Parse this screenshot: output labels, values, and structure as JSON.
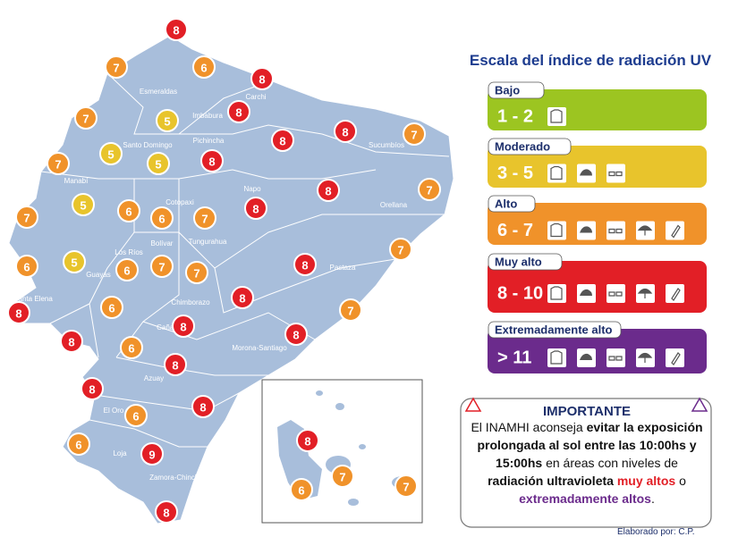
{
  "map": {
    "provinces": [
      "Esmeraldas",
      "Carchi",
      "Imbabura",
      "Sucumbíos",
      "Santo Domingo",
      "Pichincha",
      "Manabí",
      "Napo",
      "Orellana",
      "Cotopaxi",
      "Los Ríos",
      "Bolívar",
      "Tungurahua",
      "Pastaza",
      "Guayas",
      "Santa Elena",
      "Chimborazo",
      "Cañar",
      "Morona-Santiago",
      "Azuay",
      "El Oro",
      "Loja",
      "Zamora-Chinchipe"
    ],
    "markers": [
      8,
      7,
      6,
      8,
      5,
      8,
      7,
      8,
      8,
      7,
      5,
      5,
      8,
      7,
      8,
      7,
      5,
      6,
      6,
      7,
      8,
      7,
      5,
      6,
      7,
      7,
      6,
      8,
      7,
      8,
      6,
      7,
      8,
      8,
      8,
      6,
      8,
      8,
      8,
      8,
      6,
      6,
      9,
      8
    ],
    "galapagos_markers": [
      8,
      6,
      7,
      7
    ]
  },
  "scale": {
    "title": "Escala del índice de radiación UV",
    "levels": [
      {
        "label": "Bajo",
        "range": "1 - 2",
        "color": "#9cc521"
      },
      {
        "label": "Moderado",
        "range": "3 - 5",
        "color": "#e8c42c"
      },
      {
        "label": "Alto",
        "range": "6 - 7",
        "color": "#f0922a"
      },
      {
        "label": "Muy alto",
        "range": "8 - 10",
        "color": "#e21f26"
      },
      {
        "label": "Extremadamente alto",
        "range": "> 11",
        "color": "#6b2b8c"
      }
    ]
  },
  "notice": {
    "title": "IMPORTANTE",
    "segments": [
      "El INAMHI aconseja ",
      "evitar la exposición prolongada al sol entre las 10:00hs y 15:00hs",
      " en áreas con niveles de ",
      "radiación ultravioleta ",
      "muy altos",
      " o ",
      "extremadamente altos",
      "."
    ]
  },
  "footer": "Elaborado por: C.P."
}
